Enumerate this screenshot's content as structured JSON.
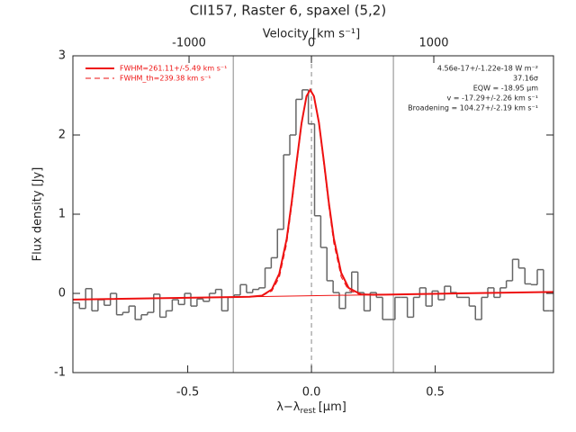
{
  "chart_data": {
    "type": "line",
    "title": "CII157, Raster 6, spaxel (5,2)",
    "x_label": {
      "main": "λ−λ",
      "sub": "rest",
      "unit": "[μm]"
    },
    "x2_label": "Velocity [km s⁻¹]",
    "y_label": "Flux density [Jy]",
    "xlim": [
      -0.964,
      0.978
    ],
    "xticks": [
      -0.5,
      {
        "value": 0,
        "label": "0.0"
      },
      0.5
    ],
    "x2lim": [
      -1949,
      1978
    ],
    "x2ticks": [
      -1000,
      0,
      1000
    ],
    "ylim": [
      -1,
      3
    ],
    "yticks": [
      -1,
      0,
      1,
      2,
      3
    ],
    "vlines": [
      -0.316,
      0.331
    ],
    "vlines_color": "#888888",
    "center_line": 0,
    "annotations": [
      "4.56e-17+/-1.22e-18 W m⁻²",
      "37.16σ",
      "EQW = -18.95 μm",
      "v = -17.29+/-2.26 km s⁻¹",
      "Broadening = 104.27+/-2.19 km s⁻¹"
    ],
    "series": [
      {
        "style": "step",
        "color": "#666666",
        "x": [
          -0.95,
          -0.925,
          -0.9,
          -0.875,
          -0.85,
          -0.825,
          -0.8,
          -0.775,
          -0.75,
          -0.725,
          -0.7,
          -0.675,
          -0.65,
          -0.625,
          -0.6,
          -0.575,
          -0.55,
          -0.525,
          -0.5,
          -0.475,
          -0.45,
          -0.425,
          -0.4,
          -0.375,
          -0.35,
          -0.325,
          -0.3,
          -0.275,
          -0.25,
          -0.225,
          -0.2,
          -0.175,
          -0.15,
          -0.125,
          -0.1,
          -0.075,
          -0.05,
          -0.025,
          0,
          0.025,
          0.05,
          0.075,
          0.1,
          0.125,
          0.15,
          0.175,
          0.2,
          0.225,
          0.25,
          0.275,
          0.3,
          0.325,
          0.35,
          0.375,
          0.4,
          0.425,
          0.45,
          0.475,
          0.5,
          0.525,
          0.55,
          0.575,
          0.6,
          0.625,
          0.65,
          0.675,
          0.7,
          0.725,
          0.75,
          0.775,
          0.8,
          0.825,
          0.85,
          0.875,
          0.9,
          0.925,
          0.95,
          0.975
        ],
        "values": [
          -0.12,
          -0.19,
          0.06,
          -0.22,
          -0.08,
          -0.15,
          0,
          -0.27,
          -0.24,
          -0.16,
          -0.33,
          -0.27,
          -0.24,
          -0.01,
          -0.3,
          -0.22,
          -0.08,
          -0.14,
          0,
          -0.16,
          -0.07,
          -0.1,
          0,
          0.05,
          -0.22,
          -0.05,
          -0.02,
          0.11,
          0.01,
          0.05,
          0.07,
          0.32,
          0.45,
          0.81,
          1.75,
          2.0,
          2.45,
          2.57,
          2.14,
          0.98,
          0.58,
          0.16,
          0.01,
          -0.19,
          0.01,
          0.27,
          0.01,
          -0.22,
          0.01,
          -0.05,
          -0.33,
          -0.33,
          -0.05,
          -0.05,
          -0.3,
          -0.05,
          0.07,
          -0.16,
          0.03,
          -0.08,
          0.09,
          0.01,
          -0.05,
          -0.05,
          -0.16,
          -0.33,
          -0.05,
          0.07,
          -0.05,
          0.07,
          0.16,
          0.43,
          0.32,
          0.12,
          0.11,
          0.3,
          -0.22,
          -0.22
        ]
      },
      {
        "style": "line",
        "color": "#ee1111",
        "width": 2,
        "dash": false,
        "name": "FWHM=261.11+/-5.49 km s⁻¹",
        "x": [
          -0.964,
          -0.3,
          -0.25,
          -0.2,
          -0.16,
          -0.13,
          -0.1,
          -0.08,
          -0.06,
          -0.04,
          -0.02,
          -0.005,
          0.01,
          0.03,
          0.05,
          0.07,
          0.09,
          0.12,
          0.15,
          0.2,
          0.25,
          0.3,
          0.978
        ],
        "values": [
          -0.078,
          -0.045,
          -0.042,
          -0.028,
          0.05,
          0.25,
          0.69,
          1.15,
          1.66,
          2.15,
          2.49,
          2.57,
          2.49,
          2.16,
          1.67,
          1.15,
          0.7,
          0.26,
          0.07,
          -0.013,
          -0.017,
          -0.015,
          0.019
        ]
      },
      {
        "style": "line",
        "color": "#ee1111",
        "width": 1,
        "dash": true,
        "name": "FWHM_th=239.38 km s⁻¹",
        "x": [
          -0.2,
          -0.16,
          -0.13,
          -0.1,
          -0.08,
          -0.06,
          -0.04,
          -0.02,
          -0.005,
          0.01,
          0.03,
          0.05,
          0.07,
          0.09,
          0.12,
          0.15,
          0.2
        ],
        "values": [
          -0.03,
          0.03,
          0.2,
          0.63,
          1.1,
          1.62,
          2.13,
          2.48,
          2.57,
          2.48,
          2.14,
          1.63,
          1.1,
          0.64,
          0.21,
          0.04,
          -0.02
        ]
      },
      {
        "style": "line",
        "color": "#ee1111",
        "width": 1,
        "dash": false,
        "x": [
          -0.964,
          0.978
        ],
        "values": [
          -0.078,
          0.019
        ]
      }
    ]
  }
}
